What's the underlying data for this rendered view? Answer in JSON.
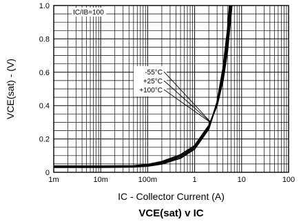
{
  "chart_data": {
    "type": "line",
    "title": "VCE(sat) v IC",
    "xlabel": "IC - Collector Current (A)",
    "ylabel": "VCE(sat) - (V)",
    "x_scale": "log",
    "xlim": [
      0.001,
      100
    ],
    "ylim": [
      0,
      1.0
    ],
    "x_tick_values": [
      0.001,
      0.01,
      0.1,
      1,
      10,
      100
    ],
    "x_tick_labels": [
      "1m",
      "10m",
      "100m",
      "1",
      "10",
      "100"
    ],
    "y_tick_values": [
      0,
      0.2,
      0.4,
      0.6,
      0.8,
      1.0
    ],
    "y_tick_labels": [
      "0",
      "0.2",
      "0.4",
      "0.6",
      "0.8",
      "1.0"
    ],
    "grid": true,
    "condition_label": "IC/IB=100",
    "series": [
      {
        "name": "-55°C",
        "x": [
          0.001,
          0.01,
          0.05,
          0.1,
          0.2,
          0.5,
          1,
          2,
          3,
          4,
          5,
          5.5
        ],
        "y": [
          0.03,
          0.03,
          0.032,
          0.037,
          0.05,
          0.085,
          0.14,
          0.26,
          0.42,
          0.62,
          0.85,
          1.0
        ]
      },
      {
        "name": "+25°C",
        "x": [
          0.001,
          0.01,
          0.05,
          0.1,
          0.2,
          0.5,
          1,
          2,
          3,
          4,
          5,
          5.8
        ],
        "y": [
          0.033,
          0.033,
          0.035,
          0.042,
          0.057,
          0.095,
          0.15,
          0.27,
          0.41,
          0.58,
          0.79,
          1.0
        ]
      },
      {
        "name": "+100°C",
        "x": [
          0.001,
          0.01,
          0.05,
          0.1,
          0.2,
          0.5,
          1,
          2,
          3,
          4,
          5,
          6.2
        ],
        "y": [
          0.037,
          0.037,
          0.039,
          0.047,
          0.064,
          0.105,
          0.16,
          0.28,
          0.4,
          0.55,
          0.73,
          1.0
        ]
      }
    ],
    "legend_labels": [
      "-55°C",
      "+25°C",
      "+100°C"
    ]
  }
}
